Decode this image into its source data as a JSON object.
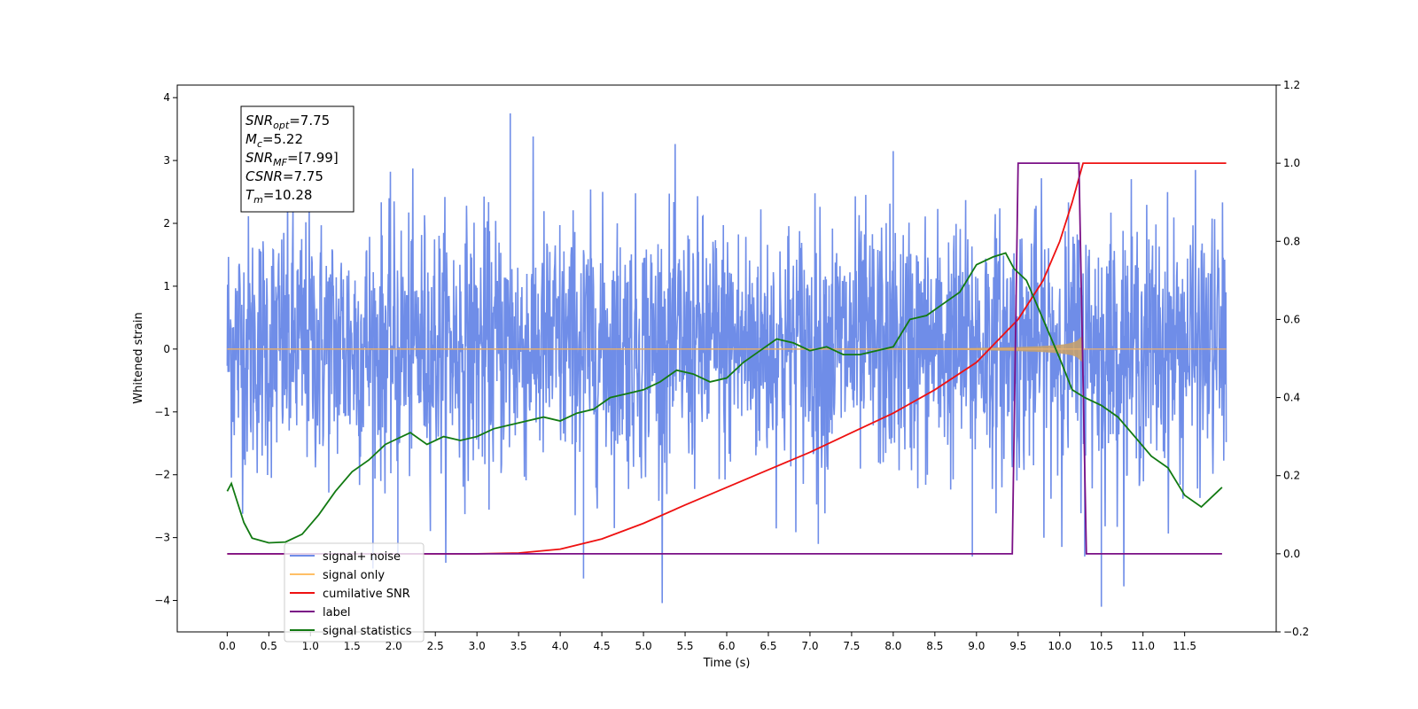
{
  "chart_data": {
    "type": "line",
    "title": "",
    "xlabel": "Time (s)",
    "ylabel": "Whitened strain",
    "y2label": "",
    "xlim": [
      -0.6,
      12.6
    ],
    "ylim": [
      -4.5,
      4.2
    ],
    "y2lim": [
      -0.2,
      1.2
    ],
    "x_ticks": [
      "0.0",
      "0.5",
      "1.0",
      "1.5",
      "2.0",
      "2.5",
      "3.0",
      "3.5",
      "4.0",
      "4.5",
      "5.0",
      "5.5",
      "6.0",
      "6.5",
      "7.0",
      "7.5",
      "8.0",
      "8.5",
      "9.0",
      "9.5",
      "10.0",
      "10.5",
      "11.0",
      "11.5"
    ],
    "y_ticks": [
      "4",
      "3",
      "2",
      "1",
      "0",
      "−1",
      "−2",
      "−3",
      "−4"
    ],
    "y_tick_values": [
      4,
      3,
      2,
      1,
      0,
      -1,
      -2,
      -3,
      -4
    ],
    "y2_ticks": [
      "1.2",
      "1.0",
      "0.8",
      "0.6",
      "0.4",
      "0.2",
      "0.0",
      "−0.2"
    ],
    "y2_tick_values": [
      1.2,
      1.0,
      0.8,
      0.6,
      0.4,
      0.2,
      0.0,
      -0.2
    ],
    "grid": false,
    "legend_position": "lower-left",
    "info_box": {
      "lines": [
        {
          "base": "SNR",
          "sub": "opt",
          "value": "=7.75"
        },
        {
          "base": "M",
          "sub": "c",
          "value": "=5.22"
        },
        {
          "base": "SNR",
          "sub": "MF",
          "value": "=[7.99]"
        },
        {
          "base": "CSNR",
          "sub": "",
          "value": "=7.75"
        },
        {
          "base": "T",
          "sub": "m",
          "value": "=10.28"
        }
      ]
    },
    "series": [
      {
        "name": "signal+ noise",
        "color": "#6f8de8",
        "axis": "left",
        "style": "noise",
        "x_range": [
          0.0,
          12.0
        ],
        "typical_range": [
          -1.8,
          1.9
        ],
        "extremes": [
          {
            "x": 3.4,
            "y": 3.75
          },
          {
            "x": 8.0,
            "y": 3.15
          },
          {
            "x": 4.28,
            "y": -3.65
          },
          {
            "x": 10.5,
            "y": -4.1
          },
          {
            "x": 10.3,
            "y": -3.3
          },
          {
            "x": 8.95,
            "y": -3.3
          },
          {
            "x": 7.1,
            "y": -3.1
          },
          {
            "x": 2.05,
            "y": -3.25
          }
        ]
      },
      {
        "name": "signal only",
        "color": "#c8a070",
        "axis": "left",
        "style": "chirp",
        "x_range": [
          0.0,
          12.0
        ],
        "merger_time": 10.28,
        "peak_amplitude": 0.5
      },
      {
        "name": "cumilative SNR",
        "color": "#ee1111",
        "axis": "right",
        "x": [
          0.0,
          3.0,
          3.5,
          4.0,
          4.5,
          5.0,
          5.5,
          6.0,
          6.5,
          7.0,
          7.5,
          8.0,
          8.5,
          9.0,
          9.5,
          9.8,
          10.0,
          10.15,
          10.28,
          12.0
        ],
        "values": [
          0.0,
          0.0,
          0.002,
          0.012,
          0.038,
          0.078,
          0.125,
          0.17,
          0.215,
          0.26,
          0.31,
          0.36,
          0.42,
          0.49,
          0.6,
          0.7,
          0.8,
          0.9,
          1.0,
          1.0
        ]
      },
      {
        "name": "label",
        "color": "#7a0f86",
        "axis": "right",
        "x": [
          0.0,
          9.43,
          9.5,
          10.23,
          10.32,
          11.95
        ],
        "values": [
          0.0,
          0.0,
          1.0,
          1.0,
          0.0,
          0.0
        ]
      },
      {
        "name": "signal statistics",
        "color": "#127a12",
        "axis": "right",
        "x": [
          0.0,
          0.05,
          0.2,
          0.3,
          0.5,
          0.7,
          0.9,
          1.1,
          1.3,
          1.5,
          1.7,
          1.9,
          2.0,
          2.2,
          2.4,
          2.6,
          2.8,
          3.0,
          3.2,
          3.4,
          3.6,
          3.8,
          4.0,
          4.2,
          4.4,
          4.6,
          4.8,
          5.0,
          5.2,
          5.4,
          5.6,
          5.8,
          6.0,
          6.2,
          6.4,
          6.6,
          6.8,
          7.0,
          7.2,
          7.4,
          7.6,
          7.8,
          8.0,
          8.2,
          8.4,
          8.6,
          8.8,
          9.0,
          9.2,
          9.35,
          9.45,
          9.6,
          9.8,
          10.0,
          10.15,
          10.3,
          10.5,
          10.7,
          10.9,
          11.1,
          11.3,
          11.5,
          11.7,
          11.9,
          11.95
        ],
        "values": [
          0.16,
          0.18,
          0.08,
          0.04,
          0.028,
          0.03,
          0.05,
          0.1,
          0.16,
          0.21,
          0.24,
          0.28,
          0.29,
          0.31,
          0.28,
          0.3,
          0.29,
          0.3,
          0.32,
          0.33,
          0.34,
          0.35,
          0.34,
          0.36,
          0.37,
          0.4,
          0.41,
          0.42,
          0.44,
          0.47,
          0.46,
          0.44,
          0.45,
          0.49,
          0.52,
          0.55,
          0.54,
          0.52,
          0.53,
          0.51,
          0.51,
          0.52,
          0.53,
          0.6,
          0.61,
          0.64,
          0.67,
          0.74,
          0.76,
          0.77,
          0.73,
          0.7,
          0.6,
          0.5,
          0.42,
          0.4,
          0.38,
          0.35,
          0.3,
          0.25,
          0.22,
          0.15,
          0.12,
          0.16,
          0.17
        ]
      }
    ]
  }
}
